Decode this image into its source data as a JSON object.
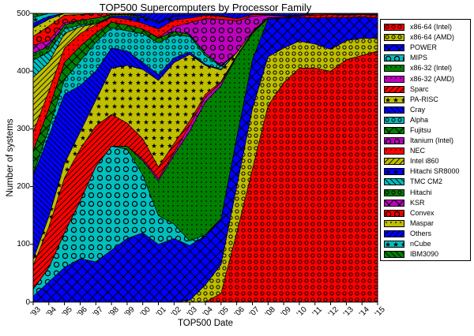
{
  "title": "TOP500 Supercomputers by Processor Family",
  "axes": {
    "x_label": "TOP500 Date",
    "y_label": "Number of systems",
    "x_tick_labels": [
      "'93",
      "'94",
      "'95",
      "'96",
      "'97",
      "'98",
      "'99",
      "'00",
      "'01",
      "'02",
      "'03",
      "'04",
      "'05",
      "'06",
      "'07",
      "'08",
      "'09",
      "'10",
      "'11",
      "'12",
      "'13",
      "'14",
      "'15"
    ],
    "y_tick_labels": [
      "0",
      "100",
      "200",
      "300",
      "400",
      "500"
    ]
  },
  "chart_data": {
    "type": "area",
    "stacked": true,
    "title": "TOP500 Supercomputers by Processor Family",
    "xlabel": "TOP500 Date",
    "ylabel": "Number of systems",
    "x_categories": [
      "'93",
      "'94",
      "'95",
      "'96",
      "'97",
      "'98",
      "'99",
      "'00",
      "'01",
      "'02",
      "'03",
      "'04",
      "'05",
      "'06",
      "'07",
      "'08",
      "'09",
      "'10",
      "'11",
      "'12",
      "'13",
      "'14",
      "'15"
    ],
    "ylim": [
      0,
      500
    ],
    "grid": false,
    "legend_position": "right",
    "total_per_date": 500,
    "series": [
      {
        "name": "x86-64 (Intel)",
        "color": "#ff0000",
        "hatch": "ring-sm",
        "values": [
          0,
          0,
          0,
          0,
          0,
          0,
          0,
          0,
          0,
          0,
          0,
          0,
          15,
          120,
          230,
          340,
          380,
          405,
          405,
          400,
          420,
          427,
          435
        ]
      },
      {
        "name": "x86-64 (AMD)",
        "color": "#bfbf00",
        "hatch": "ring-sm",
        "values": [
          0,
          0,
          0,
          0,
          0,
          0,
          0,
          0,
          0,
          0,
          3,
          30,
          50,
          80,
          105,
          85,
          60,
          47,
          42,
          38,
          33,
          30,
          22
        ]
      },
      {
        "name": "POWER",
        "color": "#0000ff",
        "hatch": "cross",
        "values": [
          10,
          35,
          60,
          75,
          70,
          90,
          110,
          120,
          100,
          110,
          95,
          85,
          80,
          85,
          85,
          65,
          52,
          42,
          45,
          55,
          40,
          37,
          35
        ]
      },
      {
        "name": "MIPS",
        "color": "#00bfbf",
        "hatch": "ring-lg",
        "values": [
          12,
          25,
          60,
          100,
          165,
          180,
          155,
          100,
          50,
          25,
          8,
          2,
          0,
          0,
          0,
          0,
          0,
          0,
          0,
          0,
          0,
          0,
          0
        ]
      },
      {
        "name": "x86-32 (Intel)",
        "color": "#008000",
        "hatch": "dot",
        "values": [
          0,
          0,
          0,
          0,
          0,
          0,
          5,
          25,
          60,
          120,
          190,
          230,
          230,
          140,
          45,
          2,
          0,
          0,
          0,
          0,
          0,
          0,
          0
        ]
      },
      {
        "name": "x86-32 (AMD)",
        "color": "#bf00bf",
        "hatch": "dot",
        "values": [
          0,
          0,
          0,
          0,
          0,
          0,
          0,
          3,
          4,
          5,
          10,
          8,
          5,
          0,
          0,
          0,
          0,
          0,
          0,
          0,
          0,
          0,
          0
        ]
      },
      {
        "name": "Sparc",
        "color": "#ff0000",
        "hatch": "diag-up",
        "values": [
          42,
          70,
          95,
          90,
          70,
          55,
          40,
          35,
          20,
          15,
          8,
          5,
          2,
          2,
          2,
          1,
          1,
          2,
          5,
          5,
          4,
          4,
          5
        ]
      },
      {
        "name": "PA-RISC",
        "color": "#bfbf00",
        "hatch": "star",
        "values": [
          10,
          18,
          25,
          30,
          45,
          80,
          100,
          120,
          150,
          140,
          115,
          50,
          20,
          5,
          2,
          0,
          0,
          0,
          0,
          0,
          0,
          0,
          0
        ]
      },
      {
        "name": "Cray",
        "color": "#0000ff",
        "hatch": "diag-down",
        "values": [
          145,
          140,
          120,
          80,
          50,
          35,
          25,
          12,
          10,
          8,
          4,
          2,
          1,
          0,
          0,
          0,
          0,
          0,
          0,
          0,
          0,
          0,
          0
        ]
      },
      {
        "name": "Alpha",
        "color": "#00bfbf",
        "hatch": "ring-sm",
        "values": [
          3,
          12,
          25,
          43,
          50,
          35,
          35,
          50,
          55,
          40,
          27,
          15,
          5,
          0,
          0,
          0,
          0,
          0,
          0,
          0,
          0,
          0,
          0
        ]
      },
      {
        "name": "Fujitsu",
        "color": "#008000",
        "hatch": "cross",
        "values": [
          40,
          35,
          30,
          25,
          16,
          10,
          10,
          8,
          8,
          6,
          4,
          4,
          2,
          0,
          0,
          0,
          0,
          0,
          0,
          0,
          0,
          0,
          0
        ]
      },
      {
        "name": "Itanium (Intel)",
        "color": "#bf00bf",
        "hatch": "ring-lg",
        "values": [
          0,
          0,
          0,
          0,
          0,
          0,
          0,
          0,
          1,
          8,
          20,
          60,
          80,
          55,
          26,
          4,
          2,
          0,
          0,
          0,
          0,
          0,
          0
        ]
      },
      {
        "name": "NEC",
        "color": "#ff0000",
        "hatch": "dot",
        "values": [
          32,
          30,
          25,
          22,
          14,
          8,
          10,
          10,
          15,
          12,
          8,
          6,
          5,
          4,
          3,
          1,
          1,
          1,
          2,
          1,
          1,
          1,
          1
        ]
      },
      {
        "name": "Intel i860",
        "color": "#bfbf00",
        "hatch": "diag-up",
        "values": [
          95,
          50,
          25,
          12,
          2,
          0,
          0,
          0,
          0,
          0,
          0,
          0,
          0,
          0,
          0,
          0,
          0,
          0,
          0,
          0,
          0,
          0,
          0
        ]
      },
      {
        "name": "Hitachi SR8000",
        "color": "#0000ff",
        "hatch": "star",
        "values": [
          0,
          0,
          0,
          0,
          0,
          2,
          5,
          10,
          10,
          6,
          4,
          2,
          1,
          0,
          0,
          0,
          0,
          0,
          0,
          0,
          0,
          0,
          0
        ]
      },
      {
        "name": "TMC CM2",
        "color": "#00bfbf",
        "hatch": "diag-down",
        "values": [
          30,
          18,
          8,
          3,
          0,
          0,
          0,
          0,
          0,
          0,
          0,
          0,
          0,
          0,
          0,
          0,
          0,
          0,
          0,
          0,
          0,
          0,
          0
        ]
      },
      {
        "name": "Hitachi",
        "color": "#008000",
        "hatch": "ring-sm",
        "values": [
          12,
          10,
          7,
          8,
          10,
          3,
          3,
          2,
          2,
          1,
          0,
          0,
          0,
          0,
          0,
          0,
          0,
          0,
          0,
          0,
          0,
          0,
          0
        ]
      },
      {
        "name": "KSR",
        "color": "#bf00bf",
        "hatch": "cross",
        "values": [
          14,
          10,
          4,
          0,
          0,
          0,
          0,
          0,
          0,
          0,
          0,
          0,
          0,
          0,
          0,
          0,
          0,
          0,
          0,
          0,
          0,
          0,
          0
        ]
      },
      {
        "name": "Convex",
        "color": "#ff0000",
        "hatch": "ring-lg",
        "values": [
          15,
          25,
          13,
          10,
          8,
          2,
          2,
          0,
          0,
          0,
          0,
          0,
          0,
          0,
          0,
          0,
          0,
          0,
          0,
          0,
          0,
          0,
          0
        ]
      },
      {
        "name": "Maspar",
        "color": "#bfbf00",
        "hatch": "dot",
        "values": [
          15,
          12,
          3,
          2,
          0,
          0,
          0,
          0,
          0,
          0,
          0,
          0,
          0,
          0,
          0,
          0,
          0,
          0,
          0,
          0,
          0,
          0,
          0
        ]
      },
      {
        "name": "Others",
        "color": "#0000ff",
        "hatch": "diag-up",
        "values": [
          8,
          5,
          0,
          0,
          0,
          0,
          0,
          5,
          15,
          4,
          4,
          1,
          4,
          9,
          2,
          2,
          4,
          3,
          1,
          1,
          2,
          1,
          2
        ]
      },
      {
        "name": "nCube",
        "color": "#00bfbf",
        "hatch": "star",
        "values": [
          10,
          5,
          0,
          0,
          0,
          0,
          0,
          0,
          0,
          0,
          0,
          0,
          0,
          0,
          0,
          0,
          0,
          0,
          0,
          0,
          0,
          0,
          0
        ]
      },
      {
        "name": "IBM3090",
        "color": "#008000",
        "hatch": "diag-down",
        "values": [
          7,
          0,
          0,
          0,
          0,
          0,
          0,
          0,
          0,
          0,
          0,
          0,
          0,
          0,
          0,
          0,
          0,
          0,
          0,
          0,
          0,
          0,
          0
        ]
      }
    ]
  }
}
